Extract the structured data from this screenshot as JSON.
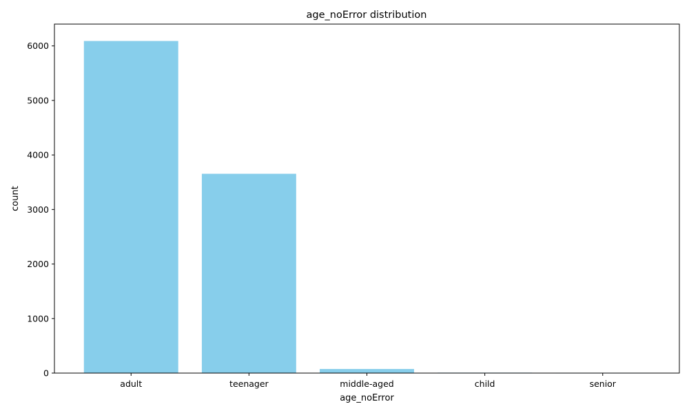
{
  "chart_data": {
    "type": "bar",
    "title": "age_noError distribution",
    "xlabel": "age_noError",
    "ylabel": "count",
    "categories": [
      "adult",
      "teenager",
      "middle-aged",
      "child",
      "senior"
    ],
    "values": [
      6090,
      3655,
      75,
      8,
      6
    ],
    "ylim": [
      0,
      6400
    ],
    "yticks": [
      0,
      1000,
      2000,
      3000,
      4000,
      5000,
      6000
    ],
    "ytick_labels": [
      "0",
      "1000",
      "2000",
      "3000",
      "4000",
      "5000",
      "6000"
    ],
    "bar_color": "#87ceeb",
    "grid": false,
    "legend": "none"
  }
}
